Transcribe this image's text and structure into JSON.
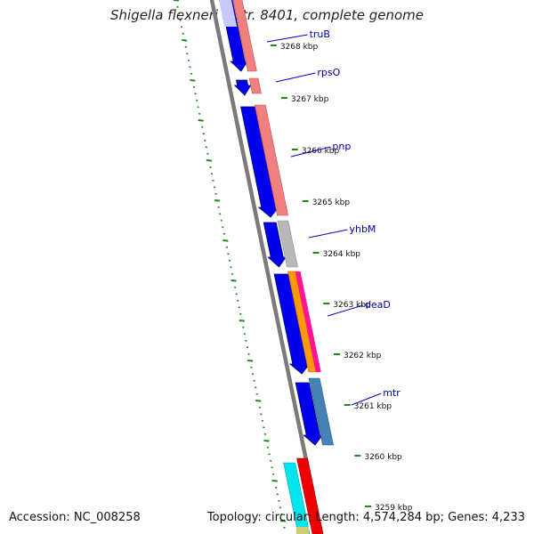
{
  "title": "Shigella flexneri 5 str. 8401, complete genome",
  "accession_text": "Accession: NC_008258",
  "summary_text": "Topology: circular; Length: 4,574,284 bp; Genes: 4,233",
  "ticks": [
    {
      "label": "3268 kbp"
    },
    {
      "label": "3267 kbp"
    },
    {
      "label": "3266 kbp"
    },
    {
      "label": "3265 kbp"
    },
    {
      "label": "3264 kbp"
    },
    {
      "label": "3263 kbp"
    },
    {
      "label": "3262 kbp"
    },
    {
      "label": "3261 kbp"
    },
    {
      "label": "3260 kbp"
    },
    {
      "label": "3259 kbp"
    }
  ],
  "genes": [
    {
      "name": "truB"
    },
    {
      "name": "rpsO"
    },
    {
      "name": "pnp"
    },
    {
      "name": "yhbM"
    },
    {
      "name": "deaD"
    },
    {
      "name": "mtr"
    }
  ],
  "colors": {
    "backbone": "#7a7a7a",
    "cds": "#0000ee",
    "label_line": "#0000cc",
    "tick": "#1a8a1a",
    "cog_salmon": "#f08080",
    "cog_grey": "#b8b8b8",
    "cog_magenta": "#ff1493",
    "cog_orange": "#ff9900",
    "cog_steel": "#4682b4",
    "cog_cyan": "#00e5ee",
    "cog_red": "#ee0000"
  }
}
